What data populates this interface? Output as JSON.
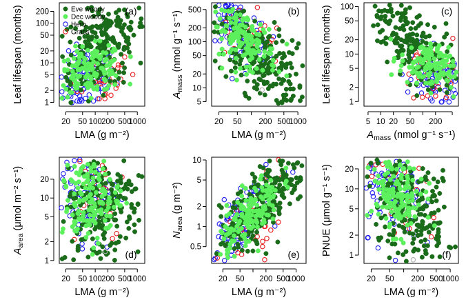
{
  "chart_data": [
    {
      "type": "scatter",
      "panel": "(a)",
      "xlabel": "LMA (g m⁻²)",
      "ylabel": "Leaf lifespan (months)",
      "xscale": "log",
      "yscale": "log",
      "xlim": [
        14,
        1500
      ],
      "ylim": [
        0.8,
        330
      ],
      "xticks": [
        20,
        50,
        100,
        200,
        500,
        1000
      ],
      "xtick_labels": [
        "20",
        "50",
        "100",
        "200",
        "500",
        "1000"
      ],
      "yticks": [
        1,
        2,
        5,
        10,
        20,
        50,
        100,
        200
      ],
      "ytick_labels": [
        "1",
        "2",
        "5",
        "10",
        "20",
        "50",
        "100",
        "200"
      ],
      "legend": {
        "position": "top-left",
        "entries": [
          "Eve woody",
          "Dec woody",
          "Herb",
          "Grass"
        ]
      },
      "clouds": [
        {
          "series": "Eve woody",
          "n": 260,
          "cx": 150,
          "cy": 28,
          "sx": 0.55,
          "sy": 0.65,
          "rho": 0.45
        },
        {
          "series": "Dec woody",
          "n": 150,
          "cx": 75,
          "cy": 6.5,
          "sx": 0.4,
          "sy": 0.3,
          "rho": 0.2
        },
        {
          "series": "Herb",
          "n": 110,
          "cx": 60,
          "cy": 3.5,
          "sx": 0.35,
          "sy": 0.4,
          "rho": 0.2
        },
        {
          "series": "Grass",
          "n": 35,
          "cx": 110,
          "cy": 3.5,
          "sx": 0.45,
          "sy": 0.45,
          "rho": 0.3
        }
      ]
    },
    {
      "type": "scatter",
      "panel": "(b)",
      "xlabel": "LMA (g m⁻²)",
      "ylabel": "A_mass (nmol g⁻¹ s⁻¹)",
      "xscale": "log",
      "yscale": "log",
      "xlim": [
        14,
        1500
      ],
      "ylim": [
        4,
        700
      ],
      "xticks": [
        20,
        50,
        100,
        200,
        500,
        1000
      ],
      "xtick_labels": [
        "20",
        "50",
        "200",
        "500",
        "1000"
      ],
      "xtick_label_values": [
        20,
        50,
        200,
        500,
        1000
      ],
      "yticks": [
        5,
        10,
        20,
        50,
        100,
        200,
        500
      ],
      "ytick_labels": [
        "5",
        "10",
        "20",
        "50",
        "100",
        "200",
        "500"
      ],
      "clouds": [
        {
          "series": "Eve woody",
          "n": 250,
          "cx": 150,
          "cy": 40,
          "sx": 0.5,
          "sy": 0.55,
          "rho": -0.6
        },
        {
          "series": "Dec woody",
          "n": 150,
          "cx": 70,
          "cy": 110,
          "sx": 0.35,
          "sy": 0.35,
          "rho": -0.5
        },
        {
          "series": "Herb",
          "n": 110,
          "cx": 45,
          "cy": 220,
          "sx": 0.35,
          "sy": 0.45,
          "rho": -0.4
        },
        {
          "series": "Grass",
          "n": 35,
          "cx": 80,
          "cy": 150,
          "sx": 0.4,
          "sy": 0.4,
          "rho": -0.4
        }
      ],
      "extra_points": [
        {
          "series": "Unknown",
          "x": 170,
          "y": 9
        }
      ]
    },
    {
      "type": "scatter",
      "panel": "(c)",
      "xlabel": "A_mass (nmol g⁻¹ s⁻¹)",
      "ylabel": "Leaf lifespan (months)",
      "xscale": "log",
      "yscale": "log",
      "xlim": [
        4,
        700
      ],
      "ylim": [
        0.8,
        120
      ],
      "xticks": [
        5,
        10,
        20,
        50,
        100,
        200,
        500
      ],
      "xtick_labels": [
        "5",
        "10",
        "20",
        "50",
        "200"
      ],
      "xtick_label_values": [
        5,
        10,
        20,
        50,
        200
      ],
      "yticks": [
        1,
        2,
        5,
        10,
        20,
        50,
        100
      ],
      "ytick_labels": [
        "1",
        "2",
        "5",
        "10",
        "20",
        "50",
        "100"
      ],
      "clouds": [
        {
          "series": "Eve woody",
          "n": 220,
          "cx": 45,
          "cy": 22,
          "sx": 0.55,
          "sy": 0.6,
          "rho": -0.7
        },
        {
          "series": "Dec woody",
          "n": 140,
          "cx": 140,
          "cy": 5.5,
          "sx": 0.35,
          "sy": 0.25,
          "rho": -0.3
        },
        {
          "series": "Herb",
          "n": 100,
          "cx": 220,
          "cy": 2.5,
          "sx": 0.35,
          "sy": 0.35,
          "rho": -0.3
        },
        {
          "series": "Grass",
          "n": 35,
          "cx": 180,
          "cy": 3,
          "sx": 0.4,
          "sy": 0.4,
          "rho": -0.3
        }
      ]
    },
    {
      "type": "scatter",
      "panel": "(d)",
      "xlabel": "LMA (g m⁻²)",
      "ylabel": "A_area (μmol m⁻² s⁻¹)",
      "xscale": "log",
      "yscale": "log",
      "xlim": [
        14,
        1500
      ],
      "ylim": [
        0.9,
        45
      ],
      "xticks": [
        20,
        50,
        100,
        200,
        500,
        1000
      ],
      "xtick_labels": [
        "20",
        "50",
        "100",
        "200",
        "500",
        "1000"
      ],
      "yticks": [
        1,
        2,
        5,
        10,
        20
      ],
      "ytick_labels": [
        "1",
        "2",
        "5",
        "10",
        "20"
      ],
      "clouds": [
        {
          "series": "Eve woody",
          "n": 250,
          "cx": 140,
          "cy": 8,
          "sx": 0.5,
          "sy": 0.5,
          "rho": 0.1
        },
        {
          "series": "Dec woody",
          "n": 150,
          "cx": 75,
          "cy": 9,
          "sx": 0.35,
          "sy": 0.35,
          "rho": 0.2
        },
        {
          "series": "Herb",
          "n": 110,
          "cx": 55,
          "cy": 12,
          "sx": 0.4,
          "sy": 0.5,
          "rho": 0.1
        },
        {
          "series": "Grass",
          "n": 35,
          "cx": 90,
          "cy": 14,
          "sx": 0.4,
          "sy": 0.45,
          "rho": 0.1
        }
      ],
      "extra_points": [
        {
          "series": "Unknown",
          "x": 175,
          "y": 1.4
        }
      ]
    },
    {
      "type": "scatter",
      "panel": "(e)",
      "xlabel": "LMA (g m⁻²)",
      "ylabel": "N_area (g m⁻²)",
      "xscale": "log",
      "yscale": "log",
      "xlim": [
        11,
        1700
      ],
      "ylim": [
        0.28,
        11
      ],
      "xticks": [
        20,
        50,
        100,
        200,
        500,
        1000
      ],
      "xtick_labels": [
        "20",
        "50",
        "200",
        "500",
        "1000"
      ],
      "xtick_label_values": [
        20,
        50,
        200,
        500,
        1000
      ],
      "yticks": [
        0.5,
        1,
        2,
        5,
        10
      ],
      "ytick_labels": [
        "0.5",
        "1",
        "2",
        "5",
        "10"
      ],
      "clouds": [
        {
          "series": "Eve woody",
          "n": 260,
          "cx": 180,
          "cy": 2.4,
          "sx": 0.5,
          "sy": 0.4,
          "rho": 0.75
        },
        {
          "series": "Dec woody",
          "n": 150,
          "cx": 80,
          "cy": 1.5,
          "sx": 0.35,
          "sy": 0.3,
          "rho": 0.7
        },
        {
          "series": "Herb",
          "n": 120,
          "cx": 40,
          "cy": 1.0,
          "sx": 0.4,
          "sy": 0.45,
          "rho": 0.75
        },
        {
          "series": "Grass",
          "n": 35,
          "cx": 90,
          "cy": 1.3,
          "sx": 0.45,
          "sy": 0.5,
          "rho": 0.5
        }
      ]
    },
    {
      "type": "scatter",
      "panel": "(f)",
      "xlabel": "LMA (g m⁻²)",
      "ylabel": "PNUE (μmol g⁻¹ s⁻¹)",
      "xscale": "log",
      "yscale": "log",
      "xlim": [
        14,
        1500
      ],
      "ylim": [
        0.75,
        30
      ],
      "xticks": [
        20,
        50,
        100,
        200,
        500,
        1000
      ],
      "xtick_labels": [
        "20",
        "50",
        "200",
        "500",
        "1000"
      ],
      "xtick_label_values": [
        20,
        50,
        200,
        500,
        1000
      ],
      "yticks": [
        1,
        2,
        5,
        10,
        20
      ],
      "ytick_labels": [
        "1",
        "2",
        "5",
        "10",
        "20"
      ],
      "clouds": [
        {
          "series": "Eve woody",
          "n": 240,
          "cx": 150,
          "cy": 4.5,
          "sx": 0.5,
          "sy": 0.5,
          "rho": -0.4
        },
        {
          "series": "Dec woody",
          "n": 150,
          "cx": 70,
          "cy": 8,
          "sx": 0.3,
          "sy": 0.3,
          "rho": -0.3
        },
        {
          "series": "Herb",
          "n": 110,
          "cx": 50,
          "cy": 10,
          "sx": 0.35,
          "sy": 0.4,
          "rho": -0.3
        },
        {
          "series": "Grass",
          "n": 35,
          "cx": 85,
          "cy": 10,
          "sx": 0.45,
          "sy": 0.45,
          "rho": -0.3
        }
      ],
      "extra_points": [
        {
          "series": "Unknown",
          "x": 160,
          "y": 0.85
        }
      ]
    }
  ],
  "series_styles": {
    "Eve woody": {
      "color": "#1a6b1a",
      "filled": true
    },
    "Dec woody": {
      "color": "#5cf05c",
      "filled": true
    },
    "Herb": {
      "color": "#1c1cf0",
      "filled": false
    },
    "Grass": {
      "color": "#e81c1c",
      "filled": false
    },
    "Unknown": {
      "color": "#b0b0b0",
      "filled": false
    }
  },
  "draw_order": [
    "Herb",
    "Grass",
    "Eve woody",
    "Dec woody",
    "Unknown"
  ]
}
